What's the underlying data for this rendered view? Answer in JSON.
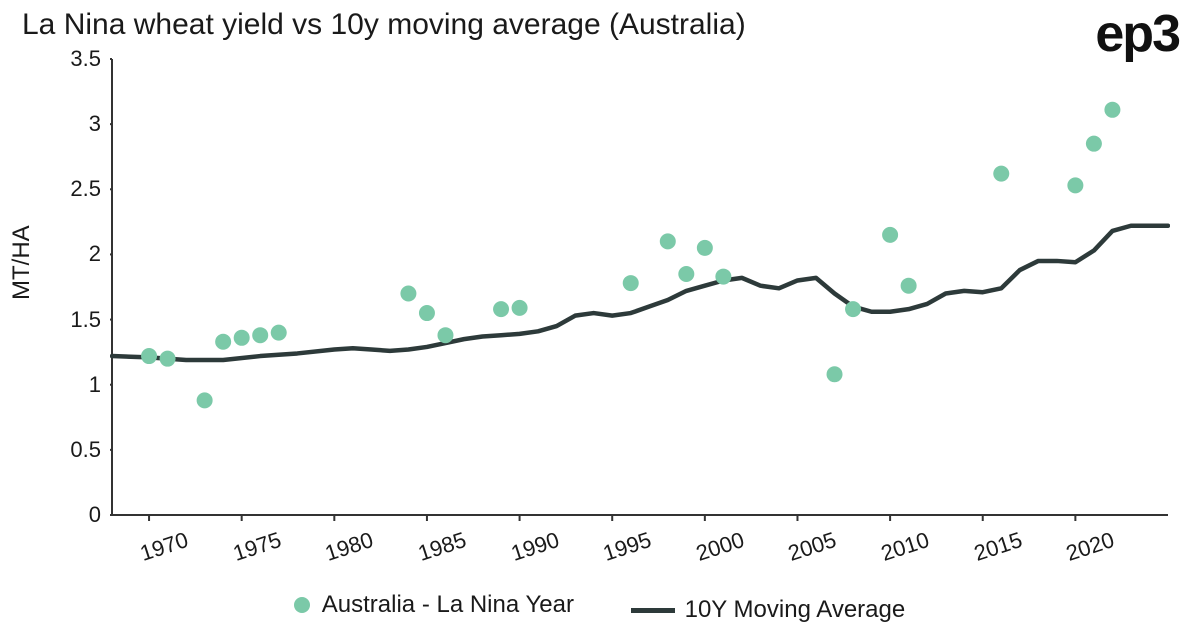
{
  "chart": {
    "type": "scatter+line",
    "title": "La Nina wheat yield vs 10y moving average (Australia)",
    "logo_text": "ep3",
    "ylabel": "MT/HA",
    "background_color": "#ffffff",
    "title_fontsize": 30,
    "label_fontsize": 24,
    "tick_fontsize": 22,
    "text_color": "#1a1a1a",
    "xlim": [
      1968,
      2025
    ],
    "ylim": [
      0,
      3.5
    ],
    "x_ticks": [
      1970,
      1975,
      1980,
      1985,
      1990,
      1995,
      2000,
      2005,
      2010,
      2015,
      2020
    ],
    "y_ticks": [
      0,
      0.5,
      1,
      1.5,
      2,
      2.5,
      3,
      3.5
    ],
    "x_tick_rotation_deg": -18,
    "axis_color": "#333333",
    "axis_width": 2,
    "scatter": {
      "label": "Australia - La Nina Year",
      "color": "#7bc9a8",
      "marker_radius": 8,
      "points": [
        {
          "x": 1970,
          "y": 1.22
        },
        {
          "x": 1971,
          "y": 1.2
        },
        {
          "x": 1973,
          "y": 0.88
        },
        {
          "x": 1974,
          "y": 1.33
        },
        {
          "x": 1975,
          "y": 1.36
        },
        {
          "x": 1976,
          "y": 1.38
        },
        {
          "x": 1977,
          "y": 1.4
        },
        {
          "x": 1984,
          "y": 1.7
        },
        {
          "x": 1985,
          "y": 1.55
        },
        {
          "x": 1986,
          "y": 1.38
        },
        {
          "x": 1989,
          "y": 1.58
        },
        {
          "x": 1990,
          "y": 1.59
        },
        {
          "x": 1996,
          "y": 1.78
        },
        {
          "x": 1998,
          "y": 2.1
        },
        {
          "x": 1999,
          "y": 1.85
        },
        {
          "x": 2000,
          "y": 2.05
        },
        {
          "x": 2001,
          "y": 1.83
        },
        {
          "x": 2007,
          "y": 1.08
        },
        {
          "x": 2008,
          "y": 1.58
        },
        {
          "x": 2010,
          "y": 2.15
        },
        {
          "x": 2011,
          "y": 1.76
        },
        {
          "x": 2016,
          "y": 2.62
        },
        {
          "x": 2020,
          "y": 2.53
        },
        {
          "x": 2021,
          "y": 2.85
        },
        {
          "x": 2022,
          "y": 3.11
        }
      ]
    },
    "line": {
      "label": "10Y Moving Average",
      "color": "#2d3a3a",
      "width": 4.5,
      "points": [
        {
          "x": 1968,
          "y": 1.22
        },
        {
          "x": 1970,
          "y": 1.21
        },
        {
          "x": 1972,
          "y": 1.19
        },
        {
          "x": 1974,
          "y": 1.19
        },
        {
          "x": 1976,
          "y": 1.22
        },
        {
          "x": 1978,
          "y": 1.24
        },
        {
          "x": 1980,
          "y": 1.27
        },
        {
          "x": 1981,
          "y": 1.28
        },
        {
          "x": 1982,
          "y": 1.27
        },
        {
          "x": 1983,
          "y": 1.26
        },
        {
          "x": 1984,
          "y": 1.27
        },
        {
          "x": 1985,
          "y": 1.29
        },
        {
          "x": 1986,
          "y": 1.32
        },
        {
          "x": 1987,
          "y": 1.35
        },
        {
          "x": 1988,
          "y": 1.37
        },
        {
          "x": 1989,
          "y": 1.38
        },
        {
          "x": 1990,
          "y": 1.39
        },
        {
          "x": 1991,
          "y": 1.41
        },
        {
          "x": 1992,
          "y": 1.45
        },
        {
          "x": 1993,
          "y": 1.53
        },
        {
          "x": 1994,
          "y": 1.55
        },
        {
          "x": 1995,
          "y": 1.53
        },
        {
          "x": 1996,
          "y": 1.55
        },
        {
          "x": 1997,
          "y": 1.6
        },
        {
          "x": 1998,
          "y": 1.65
        },
        {
          "x": 1999,
          "y": 1.72
        },
        {
          "x": 2000,
          "y": 1.76
        },
        {
          "x": 2001,
          "y": 1.8
        },
        {
          "x": 2002,
          "y": 1.82
        },
        {
          "x": 2003,
          "y": 1.76
        },
        {
          "x": 2004,
          "y": 1.74
        },
        {
          "x": 2005,
          "y": 1.8
        },
        {
          "x": 2006,
          "y": 1.82
        },
        {
          "x": 2007,
          "y": 1.7
        },
        {
          "x": 2008,
          "y": 1.6
        },
        {
          "x": 2009,
          "y": 1.56
        },
        {
          "x": 2010,
          "y": 1.56
        },
        {
          "x": 2011,
          "y": 1.58
        },
        {
          "x": 2012,
          "y": 1.62
        },
        {
          "x": 2013,
          "y": 1.7
        },
        {
          "x": 2014,
          "y": 1.72
        },
        {
          "x": 2015,
          "y": 1.71
        },
        {
          "x": 2016,
          "y": 1.74
        },
        {
          "x": 2017,
          "y": 1.88
        },
        {
          "x": 2018,
          "y": 1.95
        },
        {
          "x": 2019,
          "y": 1.95
        },
        {
          "x": 2020,
          "y": 1.94
        },
        {
          "x": 2021,
          "y": 2.03
        },
        {
          "x": 2022,
          "y": 2.18
        },
        {
          "x": 2023,
          "y": 2.22
        },
        {
          "x": 2025,
          "y": 2.22
        }
      ]
    }
  }
}
